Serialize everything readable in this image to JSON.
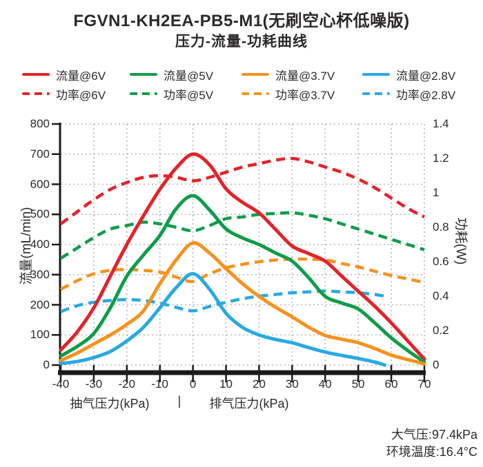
{
  "header": {
    "title": "FGVN1-KH2EA-PB5-M1(无刷空心杯低噪版)",
    "subtitle": "压力-流量-功耗曲线"
  },
  "axes": {
    "left_title": "流量(mL/min)",
    "right_title": "功耗(W)",
    "x_caption_left": "抽气压力(kPa)",
    "x_caption_separator": "|",
    "x_caption_right": "排气压力(kPa)"
  },
  "footer": {
    "line1": "大气压:97.4kPa",
    "line2": "环境温度:16.4°C"
  },
  "colors": {
    "red": "#e2232a",
    "green": "#0f9c49",
    "orange": "#f6921e",
    "blue": "#29a9e1",
    "grid": "#b4b4b4",
    "axis": "#1a1a1a",
    "text": "#2d292a"
  },
  "chart_data": {
    "type": "line",
    "title": "压力-流量-功耗曲线",
    "xlabel": "抽气压力(kPa) / 排气压力(kPa)",
    "ylabel_left": "流量(mL/min)",
    "ylabel_right": "功耗(W)",
    "xlim": [
      -40,
      70
    ],
    "ylim_left": [
      0,
      800
    ],
    "ylim_right": [
      0,
      1.4
    ],
    "grid": "dotted",
    "legend_position": "top",
    "x_ticks": [
      "-40",
      "-30",
      "-20",
      "-10",
      "0",
      "10",
      "20",
      "30",
      "40",
      "50",
      "60",
      "70"
    ],
    "y_left_ticks": [
      "0",
      "100",
      "200",
      "300",
      "400",
      "500",
      "600",
      "700",
      "800"
    ],
    "y_right_ticks": [
      "0",
      "0.2",
      "0.4",
      "0.6",
      "0.8",
      "1",
      "1.2",
      "1.4"
    ],
    "legend_order": [
      "6V",
      "5V",
      "3.7V",
      "2.8V"
    ],
    "series": [
      {
        "id": "power-6v",
        "label": "功率@6V",
        "voltage": "6V",
        "kind": "power",
        "axis": "right",
        "style": "dashed",
        "color": "#e2232a",
        "points": [
          [
            -40,
            0.82
          ],
          [
            -35,
            0.89
          ],
          [
            -30,
            0.96
          ],
          [
            -25,
            1.02
          ],
          [
            -20,
            1.06
          ],
          [
            -15,
            1.09
          ],
          [
            -10,
            1.1
          ],
          [
            -5,
            1.09
          ],
          [
            0,
            1.07
          ],
          [
            5,
            1.09
          ],
          [
            10,
            1.12
          ],
          [
            15,
            1.15
          ],
          [
            20,
            1.17
          ],
          [
            25,
            1.19
          ],
          [
            30,
            1.2
          ],
          [
            35,
            1.18
          ],
          [
            40,
            1.15
          ],
          [
            45,
            1.12
          ],
          [
            50,
            1.08
          ],
          [
            55,
            1.03
          ],
          [
            60,
            0.97
          ],
          [
            65,
            0.91
          ],
          [
            70,
            0.86
          ]
        ]
      },
      {
        "id": "power-5v",
        "label": "功率@5V",
        "voltage": "5V",
        "kind": "power",
        "axis": "right",
        "style": "dashed",
        "color": "#0f9c49",
        "points": [
          [
            -40,
            0.62
          ],
          [
            -35,
            0.68
          ],
          [
            -30,
            0.74
          ],
          [
            -25,
            0.79
          ],
          [
            -20,
            0.81
          ],
          [
            -15,
            0.83
          ],
          [
            -10,
            0.82
          ],
          [
            -5,
            0.8
          ],
          [
            0,
            0.78
          ],
          [
            5,
            0.81
          ],
          [
            10,
            0.85
          ],
          [
            15,
            0.86
          ],
          [
            20,
            0.875
          ],
          [
            25,
            0.88
          ],
          [
            30,
            0.885
          ],
          [
            35,
            0.87
          ],
          [
            40,
            0.85
          ],
          [
            45,
            0.82
          ],
          [
            50,
            0.79
          ],
          [
            55,
            0.76
          ],
          [
            60,
            0.73
          ],
          [
            65,
            0.7
          ],
          [
            70,
            0.67
          ]
        ]
      },
      {
        "id": "power-3.7v",
        "label": "功率@3.7V",
        "voltage": "3.7V",
        "kind": "power",
        "axis": "right",
        "style": "dashed",
        "color": "#f6921e",
        "points": [
          [
            -40,
            0.44
          ],
          [
            -35,
            0.49
          ],
          [
            -30,
            0.53
          ],
          [
            -25,
            0.55
          ],
          [
            -20,
            0.555
          ],
          [
            -15,
            0.55
          ],
          [
            -10,
            0.54
          ],
          [
            -5,
            0.51
          ],
          [
            0,
            0.485
          ],
          [
            5,
            0.53
          ],
          [
            10,
            0.565
          ],
          [
            15,
            0.585
          ],
          [
            20,
            0.6
          ],
          [
            25,
            0.61
          ],
          [
            30,
            0.615
          ],
          [
            35,
            0.615
          ],
          [
            40,
            0.61
          ],
          [
            45,
            0.59
          ],
          [
            50,
            0.57
          ],
          [
            55,
            0.545
          ],
          [
            60,
            0.52
          ],
          [
            65,
            0.5
          ],
          [
            70,
            0.48
          ]
        ]
      },
      {
        "id": "power-2.8v",
        "label": "功率@2.8V",
        "voltage": "2.8V",
        "kind": "power",
        "axis": "right",
        "style": "dashed",
        "color": "#29a9e1",
        "points": [
          [
            -40,
            0.31
          ],
          [
            -35,
            0.345
          ],
          [
            -30,
            0.365
          ],
          [
            -25,
            0.375
          ],
          [
            -20,
            0.38
          ],
          [
            -15,
            0.375
          ],
          [
            -10,
            0.36
          ],
          [
            -5,
            0.335
          ],
          [
            0,
            0.315
          ],
          [
            5,
            0.34
          ],
          [
            10,
            0.365
          ],
          [
            15,
            0.385
          ],
          [
            20,
            0.4
          ],
          [
            25,
            0.41
          ],
          [
            30,
            0.42
          ],
          [
            35,
            0.425
          ],
          [
            40,
            0.43
          ],
          [
            45,
            0.425
          ],
          [
            50,
            0.42
          ],
          [
            55,
            0.41
          ],
          [
            58,
            0.4
          ]
        ]
      },
      {
        "id": "flow-6v",
        "label": "流量@6V",
        "voltage": "6V",
        "kind": "flow",
        "axis": "left",
        "style": "solid",
        "color": "#e2232a",
        "points": [
          [
            -40,
            50
          ],
          [
            -35,
            110
          ],
          [
            -30,
            190
          ],
          [
            -25,
            295
          ],
          [
            -20,
            400
          ],
          [
            -15,
            495
          ],
          [
            -10,
            583
          ],
          [
            -5,
            655
          ],
          [
            0,
            700
          ],
          [
            5,
            665
          ],
          [
            10,
            585
          ],
          [
            15,
            540
          ],
          [
            20,
            505
          ],
          [
            25,
            450
          ],
          [
            30,
            395
          ],
          [
            35,
            370
          ],
          [
            40,
            345
          ],
          [
            45,
            295
          ],
          [
            50,
            245
          ],
          [
            55,
            195
          ],
          [
            60,
            140
          ],
          [
            65,
            80
          ],
          [
            70,
            20
          ]
        ]
      },
      {
        "id": "flow-5v",
        "label": "流量@5V",
        "voltage": "5V",
        "kind": "flow",
        "axis": "left",
        "style": "solid",
        "color": "#0f9c49",
        "points": [
          [
            -40,
            30
          ],
          [
            -35,
            62
          ],
          [
            -30,
            105
          ],
          [
            -25,
            190
          ],
          [
            -20,
            295
          ],
          [
            -15,
            365
          ],
          [
            -10,
            430
          ],
          [
            -5,
            520
          ],
          [
            0,
            562
          ],
          [
            5,
            515
          ],
          [
            10,
            452
          ],
          [
            15,
            422
          ],
          [
            20,
            400
          ],
          [
            25,
            372
          ],
          [
            30,
            345
          ],
          [
            35,
            290
          ],
          [
            40,
            228
          ],
          [
            45,
            206
          ],
          [
            50,
            186
          ],
          [
            55,
            140
          ],
          [
            60,
            90
          ],
          [
            65,
            48
          ],
          [
            70,
            10
          ]
        ]
      },
      {
        "id": "flow-3.7v",
        "label": "流量@3.7V",
        "voltage": "3.7V",
        "kind": "flow",
        "axis": "left",
        "style": "solid",
        "color": "#f6921e",
        "points": [
          [
            -40,
            15
          ],
          [
            -35,
            40
          ],
          [
            -30,
            70
          ],
          [
            -25,
            100
          ],
          [
            -20,
            135
          ],
          [
            -15,
            180
          ],
          [
            -10,
            270
          ],
          [
            -5,
            350
          ],
          [
            0,
            405
          ],
          [
            5,
            372
          ],
          [
            10,
            320
          ],
          [
            15,
            270
          ],
          [
            20,
            228
          ],
          [
            25,
            192
          ],
          [
            30,
            160
          ],
          [
            35,
            126
          ],
          [
            40,
            98
          ],
          [
            45,
            86
          ],
          [
            50,
            74
          ],
          [
            55,
            55
          ],
          [
            60,
            33
          ],
          [
            65,
            18
          ],
          [
            70,
            4
          ]
        ]
      },
      {
        "id": "flow-2.8v",
        "label": "流量@2.8V",
        "voltage": "2.8V",
        "kind": "flow",
        "axis": "left",
        "style": "solid",
        "color": "#29a9e1",
        "points": [
          [
            -40,
            5
          ],
          [
            -35,
            12
          ],
          [
            -30,
            25
          ],
          [
            -25,
            45
          ],
          [
            -20,
            80
          ],
          [
            -15,
            125
          ],
          [
            -10,
            190
          ],
          [
            -5,
            258
          ],
          [
            0,
            303
          ],
          [
            5,
            252
          ],
          [
            10,
            172
          ],
          [
            15,
            125
          ],
          [
            20,
            100
          ],
          [
            25,
            85
          ],
          [
            30,
            74
          ],
          [
            35,
            58
          ],
          [
            40,
            43
          ],
          [
            45,
            32
          ],
          [
            50,
            22
          ],
          [
            55,
            10
          ],
          [
            58,
            0
          ]
        ]
      }
    ]
  }
}
